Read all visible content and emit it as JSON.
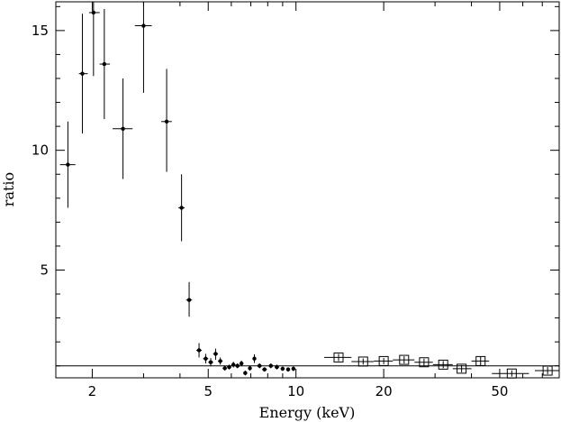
{
  "chart_data": {
    "type": "scatter",
    "title": "",
    "xlabel": "Energy (keV)",
    "ylabel": "ratio",
    "xscale": "log",
    "xlim": [
      1.5,
      80
    ],
    "ylim": [
      0.5,
      16.2
    ],
    "xticks_major": [
      2,
      5,
      10,
      20,
      50
    ],
    "xtick_labels": [
      "2",
      "5",
      "10",
      "20",
      "50"
    ],
    "xticks_minor": [
      3,
      4,
      6,
      7,
      8,
      9,
      30,
      40,
      60,
      70,
      80
    ],
    "yticks_major": [
      5,
      10,
      15
    ],
    "ytick_labels": [
      "5",
      "10",
      "15"
    ],
    "yticks_minor": [
      1,
      2,
      3,
      4,
      6,
      7,
      8,
      9,
      11,
      12,
      13,
      14,
      16
    ],
    "reference_line": {
      "y": 1.0
    },
    "grid": false,
    "legend": "none",
    "colors": {
      "marks": "#000000",
      "background": "#ffffff"
    },
    "series": [
      {
        "marker": "dot",
        "points": [
          {
            "x": 1.65,
            "y": 9.4,
            "xlo": 1.55,
            "xhi": 1.75,
            "ylo": 7.6,
            "yhi": 11.2
          },
          {
            "x": 1.85,
            "y": 13.2,
            "xlo": 1.8,
            "xhi": 1.93,
            "ylo": 10.7,
            "yhi": 15.7
          },
          {
            "x": 2.02,
            "y": 15.75,
            "xlo": 1.95,
            "xhi": 2.12,
            "ylo": 13.1,
            "yhi": 16.2
          },
          {
            "x": 2.2,
            "y": 13.6,
            "xlo": 2.12,
            "xhi": 2.3,
            "ylo": 11.3,
            "yhi": 15.9
          },
          {
            "x": 2.55,
            "y": 10.9,
            "xlo": 2.35,
            "xhi": 2.75,
            "ylo": 8.8,
            "yhi": 13.0
          },
          {
            "x": 3.0,
            "y": 15.2,
            "xlo": 2.8,
            "xhi": 3.2,
            "ylo": 12.4,
            "yhi": 16.2
          },
          {
            "x": 3.6,
            "y": 11.2,
            "xlo": 3.45,
            "xhi": 3.75,
            "ylo": 9.1,
            "yhi": 13.4
          },
          {
            "x": 4.05,
            "y": 7.6,
            "xlo": 3.95,
            "xhi": 4.15,
            "ylo": 6.2,
            "yhi": 9.0
          },
          {
            "x": 4.3,
            "y": 3.75,
            "xlo": 4.2,
            "xhi": 4.4,
            "ylo": 3.05,
            "yhi": 4.5
          },
          {
            "x": 4.65,
            "y": 1.65,
            "xlo": 4.55,
            "xhi": 4.75,
            "ylo": 1.35,
            "yhi": 1.95
          },
          {
            "x": 4.9,
            "y": 1.3,
            "xlo": 4.8,
            "xhi": 5.0,
            "ylo": 1.1,
            "yhi": 1.5
          },
          {
            "x": 5.1,
            "y": 1.15,
            "xlo": 5.0,
            "xhi": 5.2,
            "ylo": 0.98,
            "yhi": 1.32
          },
          {
            "x": 5.3,
            "y": 1.5,
            "xlo": 5.2,
            "xhi": 5.4,
            "ylo": 1.25,
            "yhi": 1.72
          },
          {
            "x": 5.5,
            "y": 1.2,
            "xlo": 5.4,
            "xhi": 5.6,
            "ylo": 1.05,
            "yhi": 1.35
          },
          {
            "x": 5.7,
            "y": 0.9,
            "xlo": 5.6,
            "xhi": 5.8,
            "ylo": 0.8,
            "yhi": 1.0
          },
          {
            "x": 5.9,
            "y": 0.95,
            "xlo": 5.8,
            "xhi": 6.0,
            "ylo": 0.85,
            "yhi": 1.05
          },
          {
            "x": 6.1,
            "y": 1.05,
            "xlo": 6.0,
            "xhi": 6.2,
            "ylo": 0.93,
            "yhi": 1.17
          },
          {
            "x": 6.3,
            "y": 1.0,
            "xlo": 6.2,
            "xhi": 6.4,
            "ylo": 0.9,
            "yhi": 1.1
          },
          {
            "x": 6.5,
            "y": 1.1,
            "xlo": 6.4,
            "xhi": 6.6,
            "ylo": 0.98,
            "yhi": 1.22
          },
          {
            "x": 6.7,
            "y": 0.7,
            "xlo": 6.6,
            "xhi": 6.8,
            "ylo": 0.6,
            "yhi": 0.8
          },
          {
            "x": 6.95,
            "y": 0.9,
            "xlo": 6.85,
            "xhi": 7.05,
            "ylo": 0.8,
            "yhi": 1.0
          },
          {
            "x": 7.2,
            "y": 1.3,
            "xlo": 7.1,
            "xhi": 7.3,
            "ylo": 1.12,
            "yhi": 1.48
          },
          {
            "x": 7.5,
            "y": 1.0,
            "xlo": 7.35,
            "xhi": 7.65,
            "ylo": 0.9,
            "yhi": 1.1
          },
          {
            "x": 7.8,
            "y": 0.85,
            "xlo": 7.65,
            "xhi": 7.95,
            "ylo": 0.76,
            "yhi": 0.94
          },
          {
            "x": 8.2,
            "y": 1.0,
            "xlo": 8.05,
            "xhi": 8.35,
            "ylo": 0.9,
            "yhi": 1.1
          },
          {
            "x": 8.6,
            "y": 0.95,
            "xlo": 8.45,
            "xhi": 8.75,
            "ylo": 0.85,
            "yhi": 1.05
          },
          {
            "x": 9.0,
            "y": 0.88,
            "xlo": 8.85,
            "xhi": 9.15,
            "ylo": 0.79,
            "yhi": 0.97
          },
          {
            "x": 9.4,
            "y": 0.85,
            "xlo": 9.25,
            "xhi": 9.55,
            "ylo": 0.76,
            "yhi": 0.94
          },
          {
            "x": 9.8,
            "y": 0.88,
            "xlo": 9.65,
            "xhi": 9.95,
            "ylo": 0.78,
            "yhi": 0.98
          }
        ]
      },
      {
        "marker": "open-square",
        "points": [
          {
            "x": 14,
            "y": 1.35,
            "xlo": 12.5,
            "xhi": 15.5,
            "ylo": 1.2,
            "yhi": 1.5
          },
          {
            "x": 17,
            "y": 1.18,
            "xlo": 15.5,
            "xhi": 18.5,
            "ylo": 1.05,
            "yhi": 1.31
          },
          {
            "x": 20,
            "y": 1.2,
            "xlo": 18.5,
            "xhi": 21.5,
            "ylo": 1.07,
            "yhi": 1.33
          },
          {
            "x": 23.5,
            "y": 1.25,
            "xlo": 21.5,
            "xhi": 25.5,
            "ylo": 1.1,
            "yhi": 1.4
          },
          {
            "x": 27.5,
            "y": 1.15,
            "xlo": 25.5,
            "xhi": 29.5,
            "ylo": 1.0,
            "yhi": 1.3
          },
          {
            "x": 32,
            "y": 1.05,
            "xlo": 29.5,
            "xhi": 34.5,
            "ylo": 0.9,
            "yhi": 1.2
          },
          {
            "x": 37,
            "y": 0.88,
            "xlo": 34.5,
            "xhi": 40,
            "ylo": 0.73,
            "yhi": 1.03
          },
          {
            "x": 43,
            "y": 1.2,
            "xlo": 40,
            "xhi": 46,
            "ylo": 1.0,
            "yhi": 1.4
          },
          {
            "x": 55,
            "y": 0.68,
            "xlo": 47,
            "xhi": 63,
            "ylo": 0.55,
            "yhi": 0.81
          },
          {
            "x": 73,
            "y": 0.8,
            "xlo": 66,
            "xhi": 80,
            "ylo": 0.65,
            "yhi": 0.95
          }
        ]
      }
    ]
  }
}
